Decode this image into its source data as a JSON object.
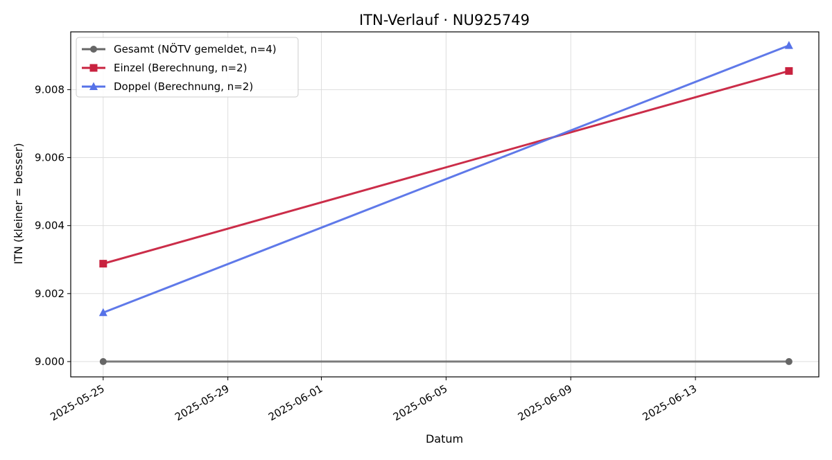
{
  "chart_data": {
    "type": "line",
    "title": "ITN-Verlauf · NU925749",
    "xlabel": "Datum",
    "ylabel": "ITN  (kleiner = besser)",
    "x_tick_labels": [
      "2025-05-25",
      "2025-05-29",
      "2025-06-01",
      "2025-06-05",
      "2025-06-09",
      "2025-06-13"
    ],
    "y_tick_labels": [
      "9.000",
      "9.002",
      "9.004",
      "9.006",
      "9.008"
    ],
    "xlim": [
      "2025-05-23 23:00",
      "2025-06-16 23:00"
    ],
    "ylim": [
      8.99955,
      9.0097
    ],
    "grid": true,
    "legend_position": "top-left",
    "series": [
      {
        "name": "Gesamt (NÖTV gemeldet, n=4)",
        "color": "#666666",
        "marker": "circle",
        "x": [
          "2025-05-25",
          "2025-06-16"
        ],
        "y": [
          9.0,
          9.0
        ]
      },
      {
        "name": "Einzel (Berechnung, n=2)",
        "color": "#c8223f",
        "marker": "square",
        "x": [
          "2025-05-25",
          "2025-06-16"
        ],
        "y": [
          9.00288,
          9.00855
        ]
      },
      {
        "name": "Doppel (Berechnung, n=2)",
        "color": "#5672e8",
        "marker": "triangle",
        "x": [
          "2025-05-25",
          "2025-06-16"
        ],
        "y": [
          9.00144,
          9.0093
        ]
      }
    ]
  }
}
